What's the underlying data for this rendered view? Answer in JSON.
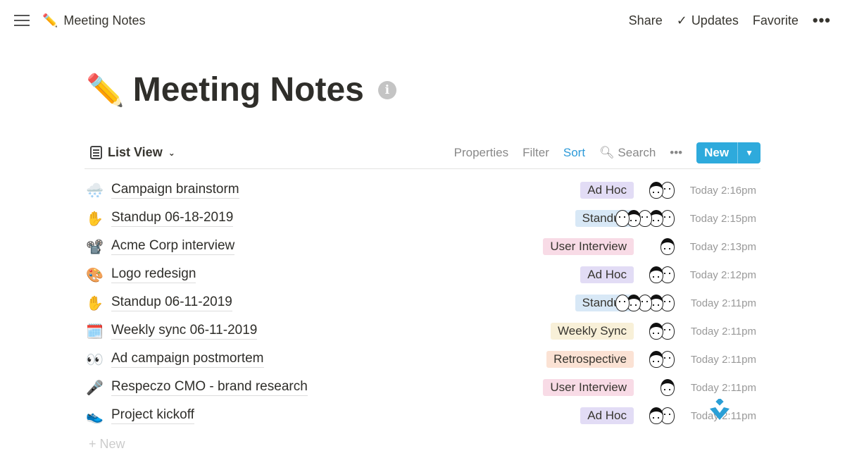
{
  "topbar": {
    "breadcrumb_icon": "✏️",
    "breadcrumb": "Meeting Notes",
    "share": "Share",
    "updates": "Updates",
    "favorite": "Favorite",
    "more": "•••"
  },
  "page": {
    "icon": "✏️",
    "title": "Meeting Notes",
    "info_icon": "i"
  },
  "toolbar": {
    "view": "List View",
    "properties": "Properties",
    "filter": "Filter",
    "sort": "Sort",
    "search": "Search",
    "more": "•••",
    "new": "New"
  },
  "colors": {
    "accent": "#2eaadc",
    "ad_hoc": "#e2dcf5",
    "standup": "#d8e8f6",
    "user_interview": "#f8dbe6",
    "weekly_sync": "#f8f0d8",
    "retrospective": "#fbe2d4"
  },
  "rows": [
    {
      "icon": "🌨️",
      "name": "Campaign brainstorm",
      "tag": "Ad Hoc",
      "tag_color": "#e2dcf5",
      "avatars": 2,
      "time": "Today 2:16pm"
    },
    {
      "icon": "✋",
      "name": "Standup 06-18-2019",
      "tag": "Standup",
      "tag_color": "#d8e8f6",
      "avatars": 5,
      "time": "Today 2:15pm"
    },
    {
      "icon": "📽️",
      "name": "Acme Corp interview",
      "tag": "User Interview",
      "tag_color": "#f8dbe6",
      "avatars": 1,
      "time": "Today 2:13pm"
    },
    {
      "icon": "🎨",
      "name": "Logo redesign",
      "tag": "Ad Hoc",
      "tag_color": "#e2dcf5",
      "avatars": 2,
      "time": "Today 2:12pm"
    },
    {
      "icon": "✋",
      "name": "Standup 06-11-2019",
      "tag": "Standup",
      "tag_color": "#d8e8f6",
      "avatars": 5,
      "time": "Today 2:11pm"
    },
    {
      "icon": "🗓️",
      "name": "Weekly sync 06-11-2019",
      "tag": "Weekly Sync",
      "tag_color": "#f8f0d8",
      "avatars": 2,
      "time": "Today 2:11pm"
    },
    {
      "icon": "👀",
      "name": "Ad campaign postmortem",
      "tag": "Retrospective",
      "tag_color": "#fbe2d4",
      "avatars": 2,
      "time": "Today 2:11pm"
    },
    {
      "icon": "🎤",
      "name": "Respeczo CMO - brand research",
      "tag": "User Interview",
      "tag_color": "#f8dbe6",
      "avatars": 1,
      "time": "Today 2:11pm"
    },
    {
      "icon": "👟",
      "name": "Project kickoff",
      "tag": "Ad Hoc",
      "tag_color": "#e2dcf5",
      "avatars": 2,
      "time": "Today 2:11pm"
    }
  ],
  "new_row": "+ New"
}
